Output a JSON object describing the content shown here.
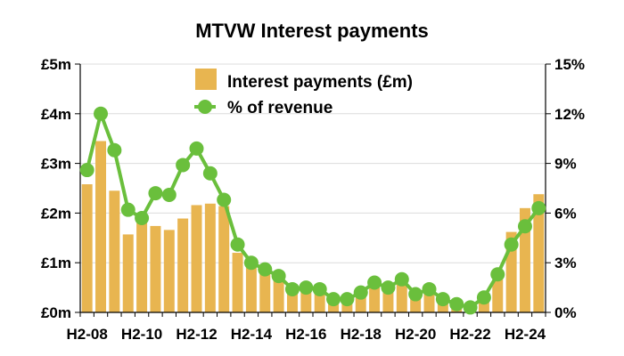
{
  "chart_data": {
    "type": "bar+line",
    "title": "MTVW Interest payments",
    "categories": [
      "H2-08",
      "H1-09",
      "H2-09",
      "H1-10",
      "H2-10",
      "H1-11",
      "H2-11",
      "H1-12",
      "H2-12",
      "H1-13",
      "H2-13",
      "H1-14",
      "H2-14",
      "H1-15",
      "H2-15",
      "H1-16",
      "H2-16",
      "H1-17",
      "H2-17",
      "H1-18",
      "H2-18",
      "H1-19",
      "H2-19",
      "H1-20",
      "H2-20",
      "H1-21",
      "H2-21",
      "H1-22",
      "H2-22",
      "H1-23",
      "H2-23",
      "H1-24",
      "H2-24",
      "H1-25"
    ],
    "x_tick_labels": [
      "H2-08",
      "H2-10",
      "H2-12",
      "H2-14",
      "H2-16",
      "H2-18",
      "H2-20",
      "H2-22",
      "H2-24"
    ],
    "x_tick_indices": [
      0,
      4,
      8,
      12,
      16,
      20,
      24,
      28,
      32
    ],
    "series": [
      {
        "name": "Interest payments (£m)",
        "type": "bar",
        "axis": "left",
        "color": "#E8B550",
        "values": [
          2.58,
          3.45,
          2.45,
          1.57,
          1.8,
          1.74,
          1.66,
          1.89,
          2.16,
          2.19,
          2.14,
          1.2,
          1.0,
          0.85,
          0.74,
          0.46,
          0.52,
          0.52,
          0.3,
          0.28,
          0.4,
          0.61,
          0.5,
          0.65,
          0.37,
          0.49,
          0.25,
          0.17,
          0.14,
          0.26,
          0.81,
          1.62,
          2.1,
          2.38
        ]
      },
      {
        "name": "% of revenue",
        "type": "line",
        "axis": "right",
        "color": "#6ABF3C",
        "values": [
          8.6,
          12.0,
          9.8,
          6.2,
          5.7,
          7.2,
          7.1,
          8.9,
          9.9,
          8.4,
          6.8,
          4.1,
          3.0,
          2.6,
          2.2,
          1.4,
          1.5,
          1.4,
          0.8,
          0.8,
          1.2,
          1.8,
          1.5,
          2.0,
          1.1,
          1.4,
          0.8,
          0.5,
          0.3,
          0.9,
          2.3,
          4.1,
          5.2,
          6.3
        ]
      }
    ],
    "left_axis": {
      "ticks": [
        "£0m",
        "£1m",
        "£2m",
        "£3m",
        "£4m",
        "£5m"
      ],
      "ylim": [
        0,
        5
      ]
    },
    "right_axis": {
      "ticks": [
        "0%",
        "3%",
        "6%",
        "9%",
        "12%",
        "15%"
      ],
      "ylim": [
        0,
        15
      ]
    },
    "grid": "horizontal",
    "legend_position": "top-center"
  }
}
